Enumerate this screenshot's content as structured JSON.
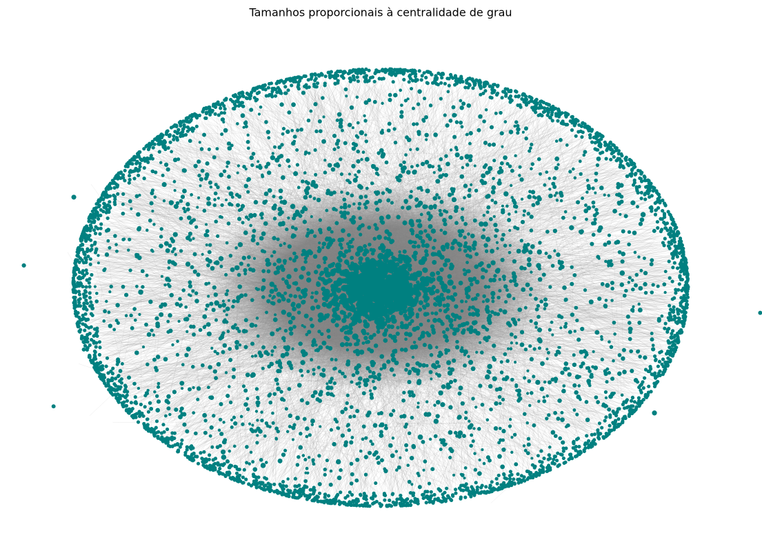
{
  "title": "Tamanhos proporcionais à centralidade de grau"
}
